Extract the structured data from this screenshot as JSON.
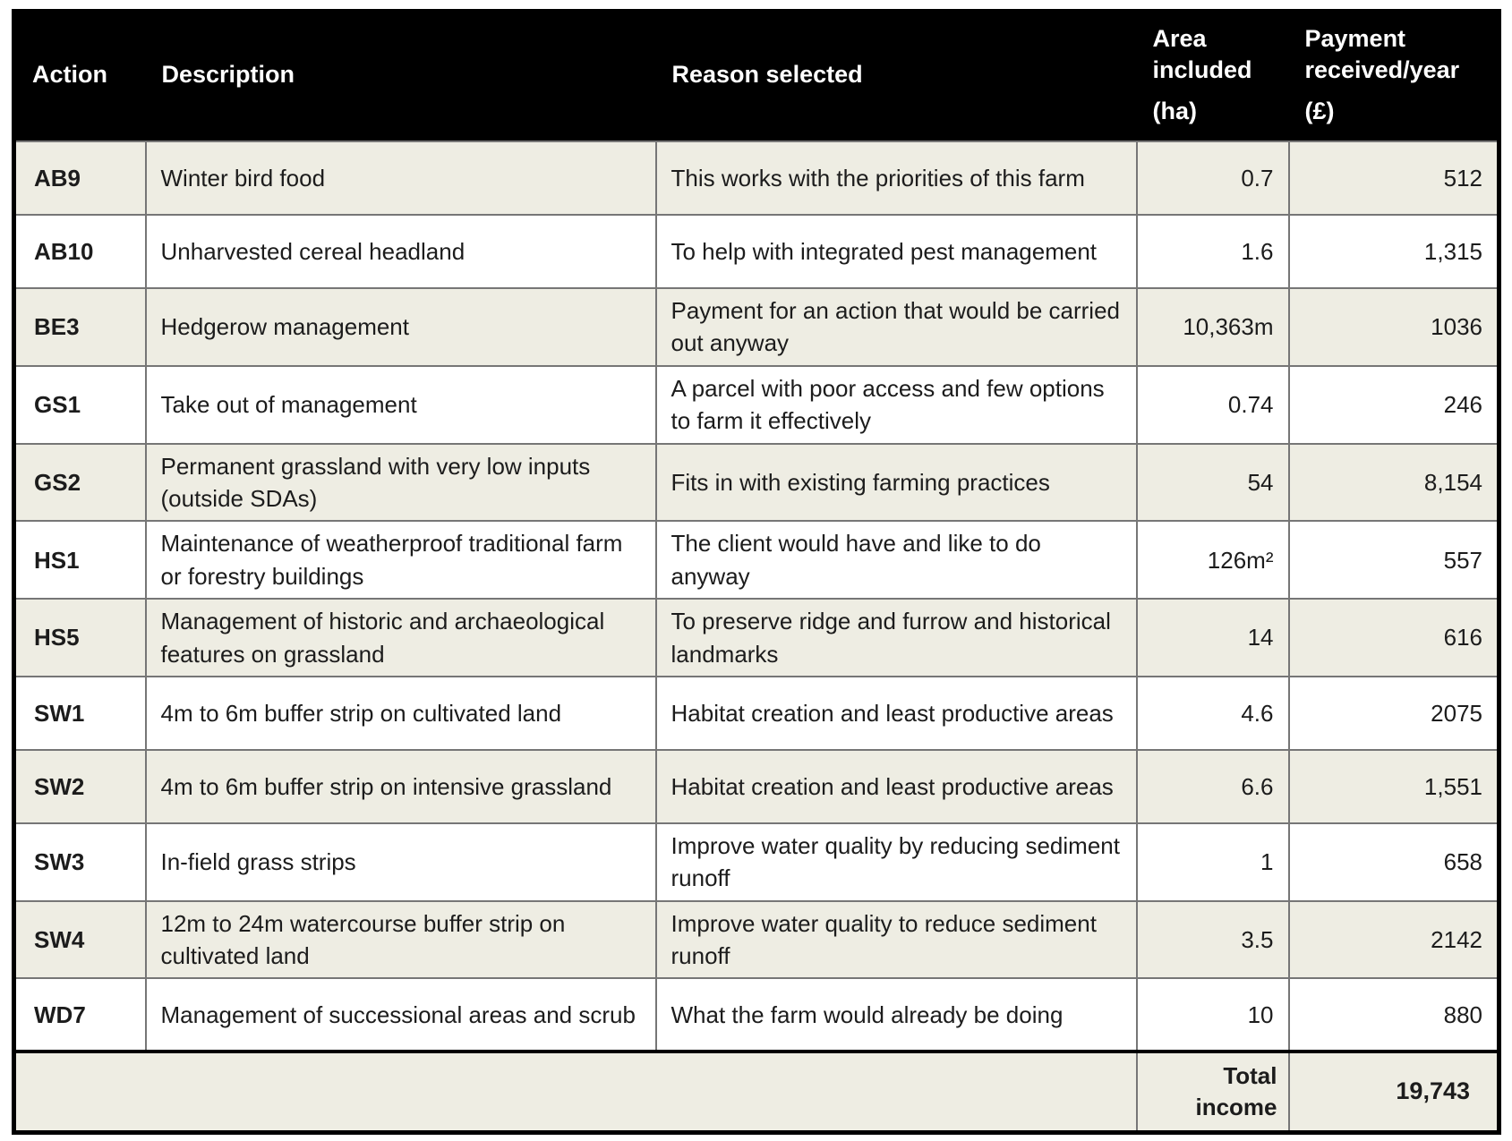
{
  "colors": {
    "header_bg": "#000000",
    "header_text": "#ffffff",
    "row_alt_bg": "#EEEDE3",
    "row_bg": "#FFFFFF",
    "grid_line": "#767676",
    "outer_border": "#000000",
    "body_text": "#1C1C1C"
  },
  "table": {
    "header": {
      "action": "Action",
      "description": "Description",
      "reason": "Reason selected",
      "area_label": "Area included",
      "area_unit": "(ha)",
      "payment_label": "Payment received/year",
      "payment_unit": "(£)"
    },
    "rows": [
      {
        "action": "AB9",
        "description": "Winter bird food",
        "reason": "This works with the priorities of this farm",
        "area": "0.7",
        "payment": "512"
      },
      {
        "action": "AB10",
        "description": "Unharvested cereal headland",
        "reason": "To help with integrated pest management",
        "area": "1.6",
        "payment": "1,315"
      },
      {
        "action": "BE3",
        "description": "Hedgerow management",
        "reason": "Payment for an action that would be carried out anyway",
        "area": "10,363m",
        "payment": "1036"
      },
      {
        "action": "GS1",
        "description": "Take out of management",
        "reason": "A parcel with poor access and few options to farm it effectively",
        "area": "0.74",
        "payment": "246"
      },
      {
        "action": "GS2",
        "description": "Permanent grassland with very low inputs (outside SDAs)",
        "reason": "Fits in with existing farming practices",
        "area": "54",
        "payment": "8,154"
      },
      {
        "action": "HS1",
        "description": "Maintenance of weatherproof traditional farm or forestry buildings",
        "reason": "The client would have and like to do anyway",
        "area": "126m²",
        "payment": "557"
      },
      {
        "action": "HS5",
        "description": "Management of historic and archaeological features on grassland",
        "reason": "To preserve ridge and furrow and historical landmarks",
        "area": "14",
        "payment": "616"
      },
      {
        "action": "SW1",
        "description": "4m to 6m buffer strip on cultivated land",
        "reason": "Habitat creation and least productive areas",
        "area": "4.6",
        "payment": "2075"
      },
      {
        "action": "SW2",
        "description": "4m to 6m buffer strip on intensive grassland",
        "reason": "Habitat creation and least productive areas",
        "area": "6.6",
        "payment": "1,551"
      },
      {
        "action": "SW3",
        "description": "In-field grass strips",
        "reason": "Improve water quality by reducing sediment runoff",
        "area": "1",
        "payment": "658"
      },
      {
        "action": "SW4",
        "description": "12m to 24m watercourse buffer strip on cultivated land",
        "reason": "Improve water quality to reduce sediment runoff",
        "area": "3.5",
        "payment": "2142"
      },
      {
        "action": "WD7",
        "description": "Management of successional areas and scrub",
        "reason": "What the farm would already be doing",
        "area": "10",
        "payment": "880"
      }
    ],
    "total": {
      "label": "Total income",
      "value": "19,743"
    }
  }
}
